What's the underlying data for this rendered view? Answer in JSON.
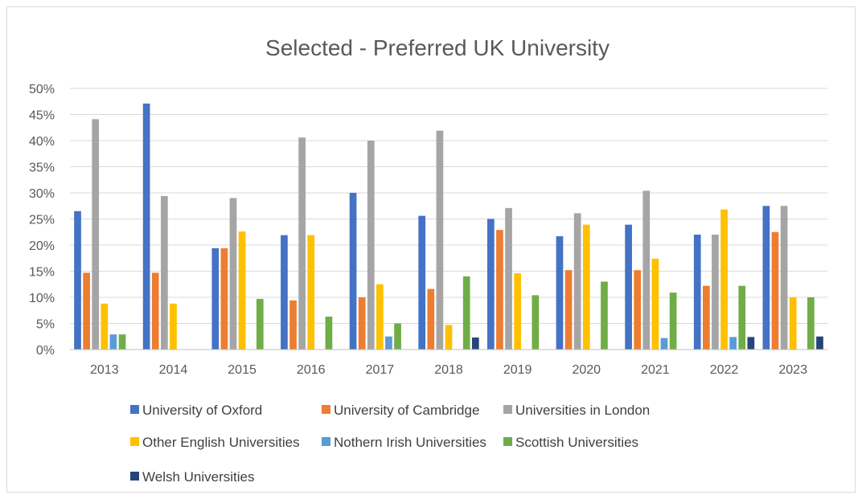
{
  "chart_data": {
    "type": "bar",
    "title": "Selected - Preferred UK University",
    "xlabel": "",
    "ylabel": "",
    "categories": [
      "2013",
      "2014",
      "2015",
      "2016",
      "2017",
      "2018",
      "2019",
      "2020",
      "2021",
      "2022",
      "2023"
    ],
    "ylim": [
      0,
      0.5
    ],
    "yticks": [
      "0%",
      "5%",
      "10%",
      "15%",
      "20%",
      "25%",
      "30%",
      "35%",
      "40%",
      "45%",
      "50%"
    ],
    "grid": true,
    "legend_position": "bottom",
    "series": [
      {
        "name": "University of Oxford",
        "color": "#4472C4",
        "values": [
          0.265,
          0.471,
          0.194,
          0.219,
          0.3,
          0.256,
          0.25,
          0.217,
          0.239,
          0.22,
          0.275
        ]
      },
      {
        "name": "University of Cambridge",
        "color": "#ED7D31",
        "values": [
          0.147,
          0.147,
          0.194,
          0.094,
          0.1,
          0.116,
          0.229,
          0.152,
          0.152,
          0.122,
          0.225
        ]
      },
      {
        "name": "Universities in London",
        "color": "#A5A5A5",
        "values": [
          0.441,
          0.294,
          0.29,
          0.406,
          0.4,
          0.419,
          0.271,
          0.261,
          0.304,
          0.22,
          0.275
        ]
      },
      {
        "name": "Other English Universities",
        "color": "#FFC000",
        "values": [
          0.088,
          0.088,
          0.226,
          0.219,
          0.125,
          0.047,
          0.146,
          0.239,
          0.174,
          0.268,
          0.1
        ]
      },
      {
        "name": "Nothern Irish Universities",
        "color": "#5B9BD5",
        "values": [
          0.029,
          0,
          0,
          0,
          0.025,
          0,
          0,
          0,
          0.022,
          0.024,
          0
        ]
      },
      {
        "name": "Scottish Universities",
        "color": "#70AD47",
        "values": [
          0.029,
          0,
          0.097,
          0.063,
          0.05,
          0.14,
          0.104,
          0.13,
          0.109,
          0.122,
          0.1
        ]
      },
      {
        "name": "Welsh Universities",
        "color": "#264478",
        "values": [
          0,
          0,
          0,
          0,
          0,
          0.023,
          0,
          0,
          0,
          0.024,
          0.025
        ]
      }
    ]
  }
}
